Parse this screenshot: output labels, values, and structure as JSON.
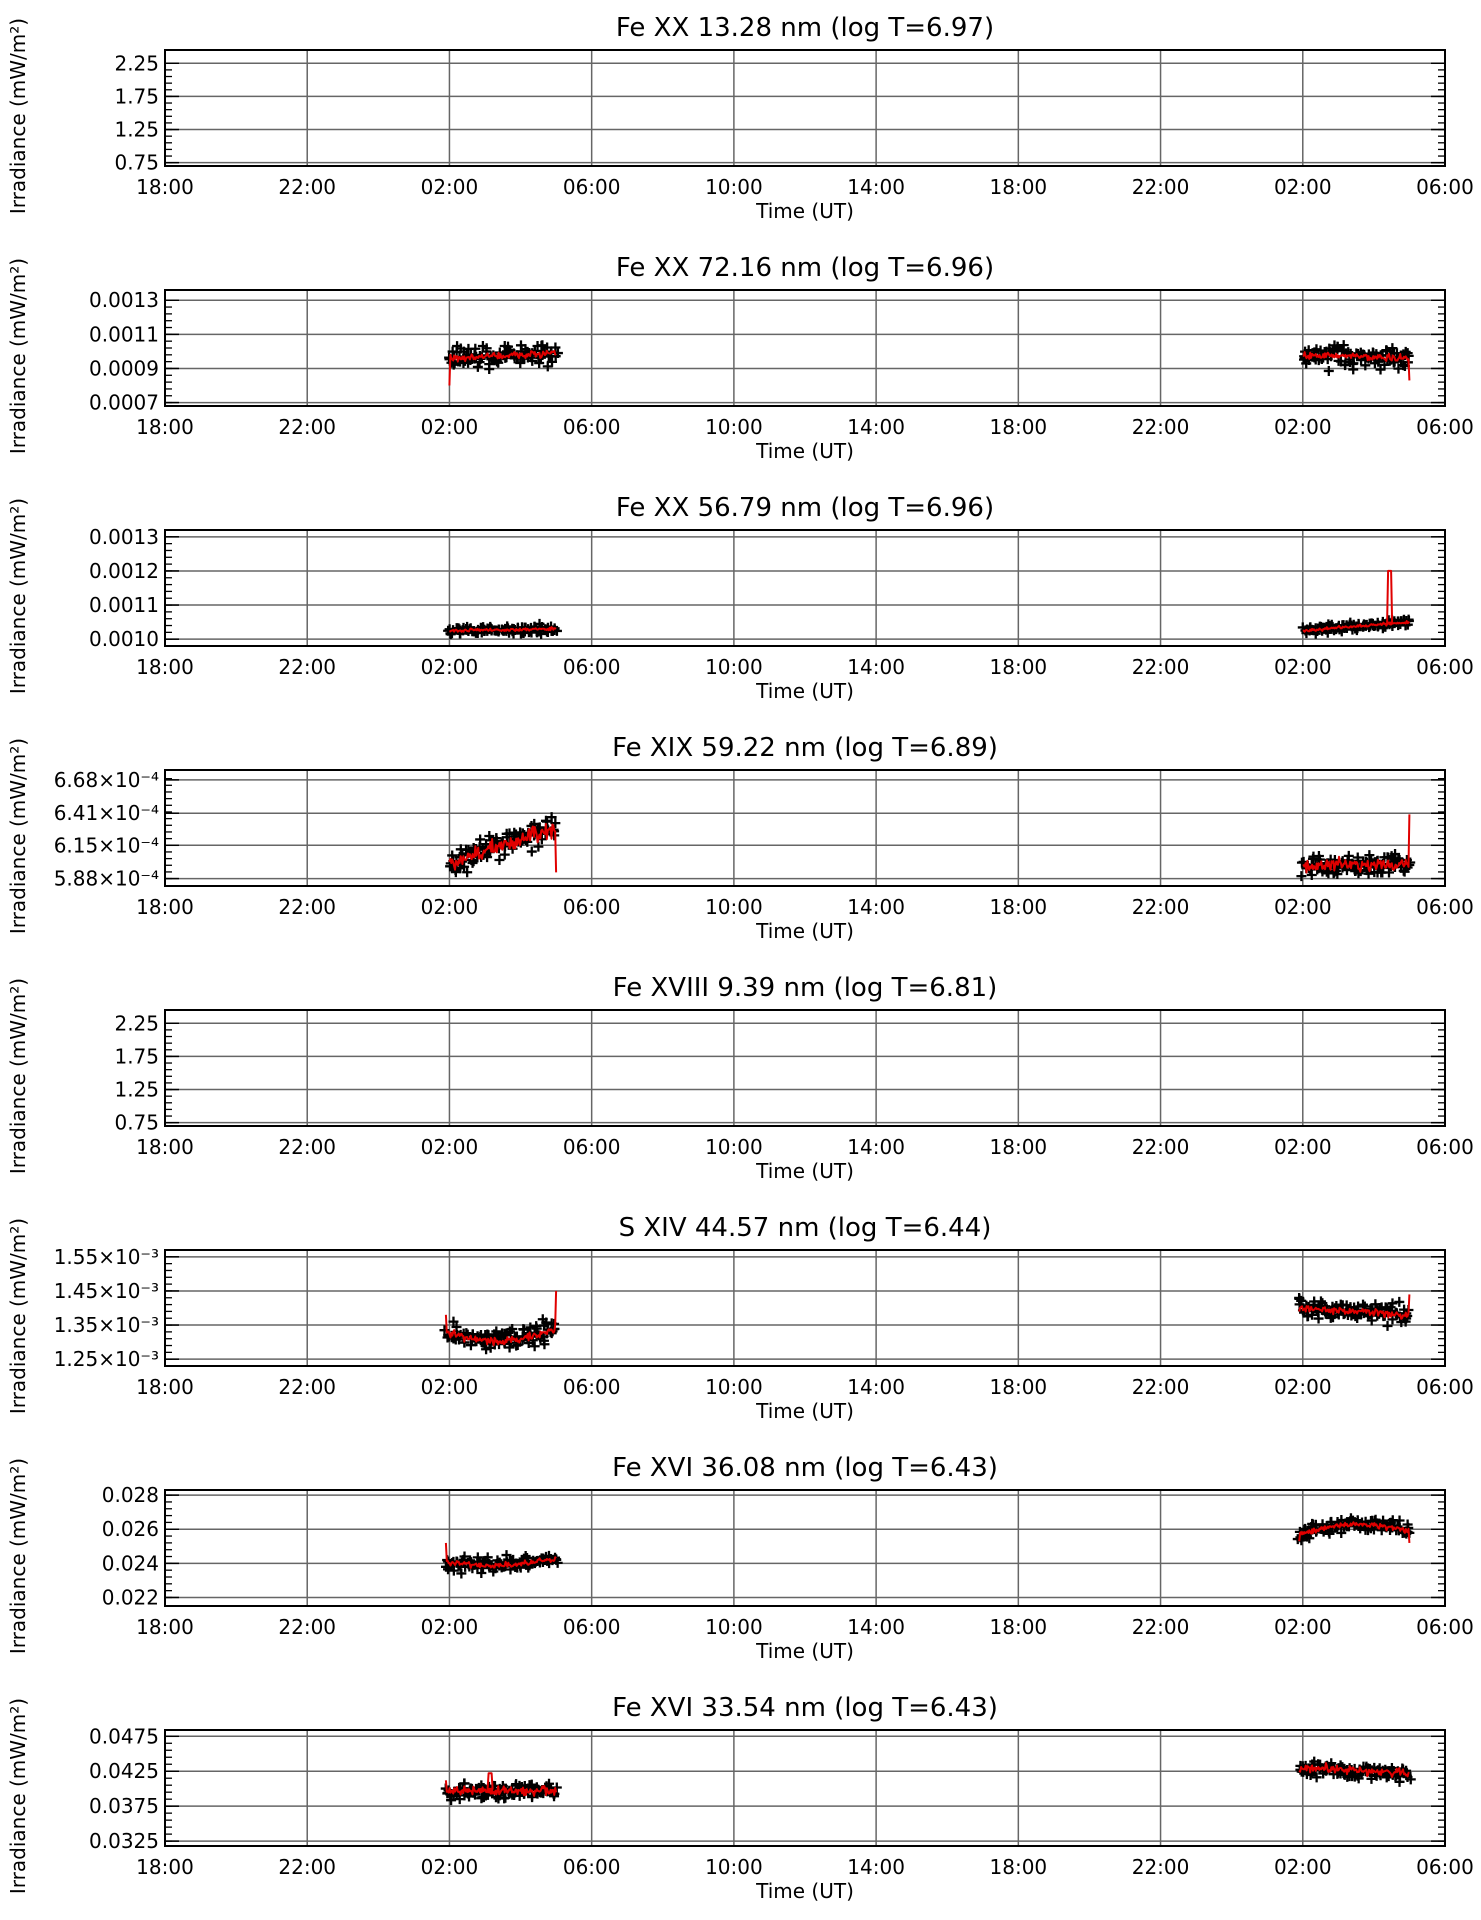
{
  "common": {
    "ylabel": "Irradiance (mW/m²)",
    "xlabel": "Time (UT)",
    "x_ticks": [
      "18:00",
      "22:00",
      "02:00",
      "06:00",
      "10:00",
      "14:00",
      "18:00",
      "22:00",
      "02:00",
      "06:00"
    ],
    "x_range_hours": [
      0,
      36
    ],
    "grid": true,
    "colors": {
      "points": "#000000",
      "average": "#e00000",
      "grid": "#666666"
    }
  },
  "chart_data": [
    {
      "type": "scatter",
      "title": "Fe XX 13.28 nm (log T=6.97)",
      "xlabel": "Time (UT)",
      "ylabel": "Irradiance (mW/m²)",
      "y_ticks": [
        "2.25",
        "1.75",
        "1.25",
        "0.75"
      ],
      "y_tick_values": [
        2.25,
        1.75,
        1.25,
        0.75
      ],
      "ylim": [
        0.7,
        2.45
      ],
      "series": []
    },
    {
      "type": "scatter",
      "title": "Fe XX 72.16 nm (log T=6.96)",
      "xlabel": "Time (UT)",
      "ylabel": "Irradiance (mW/m²)",
      "y_ticks": [
        "0.0013",
        "0.0011",
        "0.0009",
        "0.0007"
      ],
      "y_tick_values": [
        0.0013,
        0.0011,
        0.0009,
        0.0007
      ],
      "ylim": [
        0.00068,
        0.00136
      ],
      "series": [
        {
          "x_start": 8.0,
          "x_end": 11.0,
          "x_end_uncut": 11.05,
          "n": 105,
          "base": 0.00096,
          "noise": 6e-05,
          "trend": 3e-05,
          "shape": "flat",
          "line_noise": 2e-05,
          "spikes": [],
          "start": 0.0008
        },
        {
          "x_start": 32.0,
          "x_end": 35.0,
          "x_end_uncut": 35.05,
          "n": 105,
          "base": 0.00098,
          "noise": 6e-05,
          "trend": -2e-05,
          "shape": "flat",
          "line_noise": 2e-05,
          "spikes": [],
          "end": 0.00083
        }
      ]
    },
    {
      "type": "scatter",
      "title": "Fe XX 56.79 nm (log T=6.96)",
      "xlabel": "Time (UT)",
      "ylabel": "Irradiance (mW/m²)",
      "y_ticks": [
        "0.0013",
        "0.0012",
        "0.0011",
        "0.0010"
      ],
      "y_tick_values": [
        0.0013,
        0.0012,
        0.0011,
        0.001
      ],
      "ylim": [
        0.00098,
        0.00132
      ],
      "series": [
        {
          "x_start": 8.0,
          "x_end": 11.0,
          "n": 105,
          "base": 0.001025,
          "noise": 1.2e-05,
          "trend": 5e-06,
          "shape": "flat",
          "line_noise": 4e-06,
          "spikes": []
        },
        {
          "x_start": 32.0,
          "x_end": 35.0,
          "n": 105,
          "base": 0.001025,
          "noise": 1.2e-05,
          "trend": 2.5e-05,
          "shape": "flat",
          "line_noise": 4e-06,
          "spikes": [
            [
              34.4,
              0.0012
            ]
          ]
        }
      ]
    },
    {
      "type": "scatter",
      "title": "Fe XIX 59.22 nm (log T=6.89)",
      "xlabel": "Time (UT)",
      "ylabel": "Irradiance (mW/m²)",
      "y_ticks": [
        "6.68×10⁻⁴",
        "6.41×10⁻⁴",
        "6.15×10⁻⁴",
        "5.88×10⁻⁴"
      ],
      "y_tick_values": [
        0.000668,
        0.000641,
        0.000615,
        0.000588
      ],
      "ylim": [
        0.000582,
        0.000676
      ],
      "series": [
        {
          "x_start": 8.0,
          "x_end": 11.0,
          "n": 105,
          "base": 0.0006,
          "noise": 1e-05,
          "trend": 3e-05,
          "shape": "flat",
          "line_noise": 6e-06,
          "spikes": [],
          "end": 0.000593
        },
        {
          "x_start": 32.0,
          "x_end": 35.0,
          "n": 105,
          "base": 0.000598,
          "noise": 9e-06,
          "trend": 2e-06,
          "shape": "flat",
          "line_noise": 5e-06,
          "spikes": [],
          "end": 0.00064
        }
      ]
    },
    {
      "type": "scatter",
      "title": "Fe XVIII 9.39 nm (log T=6.81)",
      "xlabel": "Time (UT)",
      "ylabel": "Irradiance (mW/m²)",
      "y_ticks": [
        "2.25",
        "1.75",
        "1.25",
        "0.75"
      ],
      "y_tick_values": [
        2.25,
        1.75,
        1.25,
        0.75
      ],
      "ylim": [
        0.7,
        2.45
      ],
      "series": []
    },
    {
      "type": "scatter",
      "title": "S XIV 44.57 nm (log T=6.44)",
      "xlabel": "Time (UT)",
      "ylabel": "Irradiance (mW/m²)",
      "y_ticks": [
        "1.55×10⁻³",
        "1.45×10⁻³",
        "1.35×10⁻³",
        "1.25×10⁻³"
      ],
      "y_tick_values": [
        0.00155,
        0.00145,
        0.00135,
        0.00125
      ],
      "ylim": [
        0.00123,
        0.00157
      ],
      "series": [
        {
          "x_start": 7.9,
          "x_end": 11.0,
          "n": 110,
          "base": 0.00133,
          "noise": 3e-05,
          "trend": 1e-05,
          "shape": "dip",
          "dip": 4e-05,
          "line_noise": 1e-05,
          "spikes": [],
          "start": 0.00138,
          "end": 0.00145
        },
        {
          "x_start": 31.9,
          "x_end": 35.0,
          "n": 110,
          "base": 0.0014,
          "noise": 3e-05,
          "trend": -2e-05,
          "shape": "flat",
          "line_noise": 1e-05,
          "spikes": [],
          "end": 0.00144
        }
      ]
    },
    {
      "type": "scatter",
      "title": "Fe XVI 36.08 nm (log T=6.43)",
      "xlabel": "Time (UT)",
      "ylabel": "Irradiance (mW/m²)",
      "y_ticks": [
        "0.028",
        "0.026",
        "0.024",
        "0.022"
      ],
      "y_tick_values": [
        0.028,
        0.026,
        0.024,
        0.022
      ],
      "ylim": [
        0.0215,
        0.0283
      ],
      "series": [
        {
          "x_start": 7.9,
          "x_end": 11.0,
          "n": 110,
          "base": 0.0241,
          "noise": 0.0004,
          "trend": 0.0002,
          "shape": "dip",
          "dip": 0.0004,
          "line_noise": 0.00015,
          "spikes": [],
          "start": 0.0252
        },
        {
          "x_start": 31.9,
          "x_end": 35.0,
          "n": 110,
          "base": 0.0257,
          "noise": 0.0004,
          "trend": 0.0002,
          "shape": "hump",
          "dip": 0.0006,
          "line_noise": 0.00015,
          "spikes": [],
          "start": 0.0253,
          "end": 0.0252
        }
      ]
    },
    {
      "type": "scatter",
      "title": "Fe XVI 33.54 nm (log T=6.43)",
      "xlabel": "Time (UT)",
      "ylabel": "Irradiance (mW/m²)",
      "y_ticks": [
        "0.0475",
        "0.0425",
        "0.0375",
        "0.0325"
      ],
      "y_tick_values": [
        0.0475,
        0.0425,
        0.0375,
        0.0325
      ],
      "ylim": [
        0.0318,
        0.0484
      ],
      "series": [
        {
          "x_start": 7.9,
          "x_end": 11.0,
          "n": 110,
          "base": 0.0397,
          "noise": 0.0011,
          "trend": 0.0,
          "shape": "flat",
          "line_noise": 0.0006,
          "spikes": [
            [
              9.1,
              0.0422
            ]
          ],
          "start": 0.0412
        },
        {
          "x_start": 31.9,
          "x_end": 35.0,
          "n": 110,
          "base": 0.043,
          "noise": 0.0011,
          "trend": -0.0008,
          "shape": "flat",
          "line_noise": 0.0006,
          "spikes": []
        }
      ]
    }
  ]
}
